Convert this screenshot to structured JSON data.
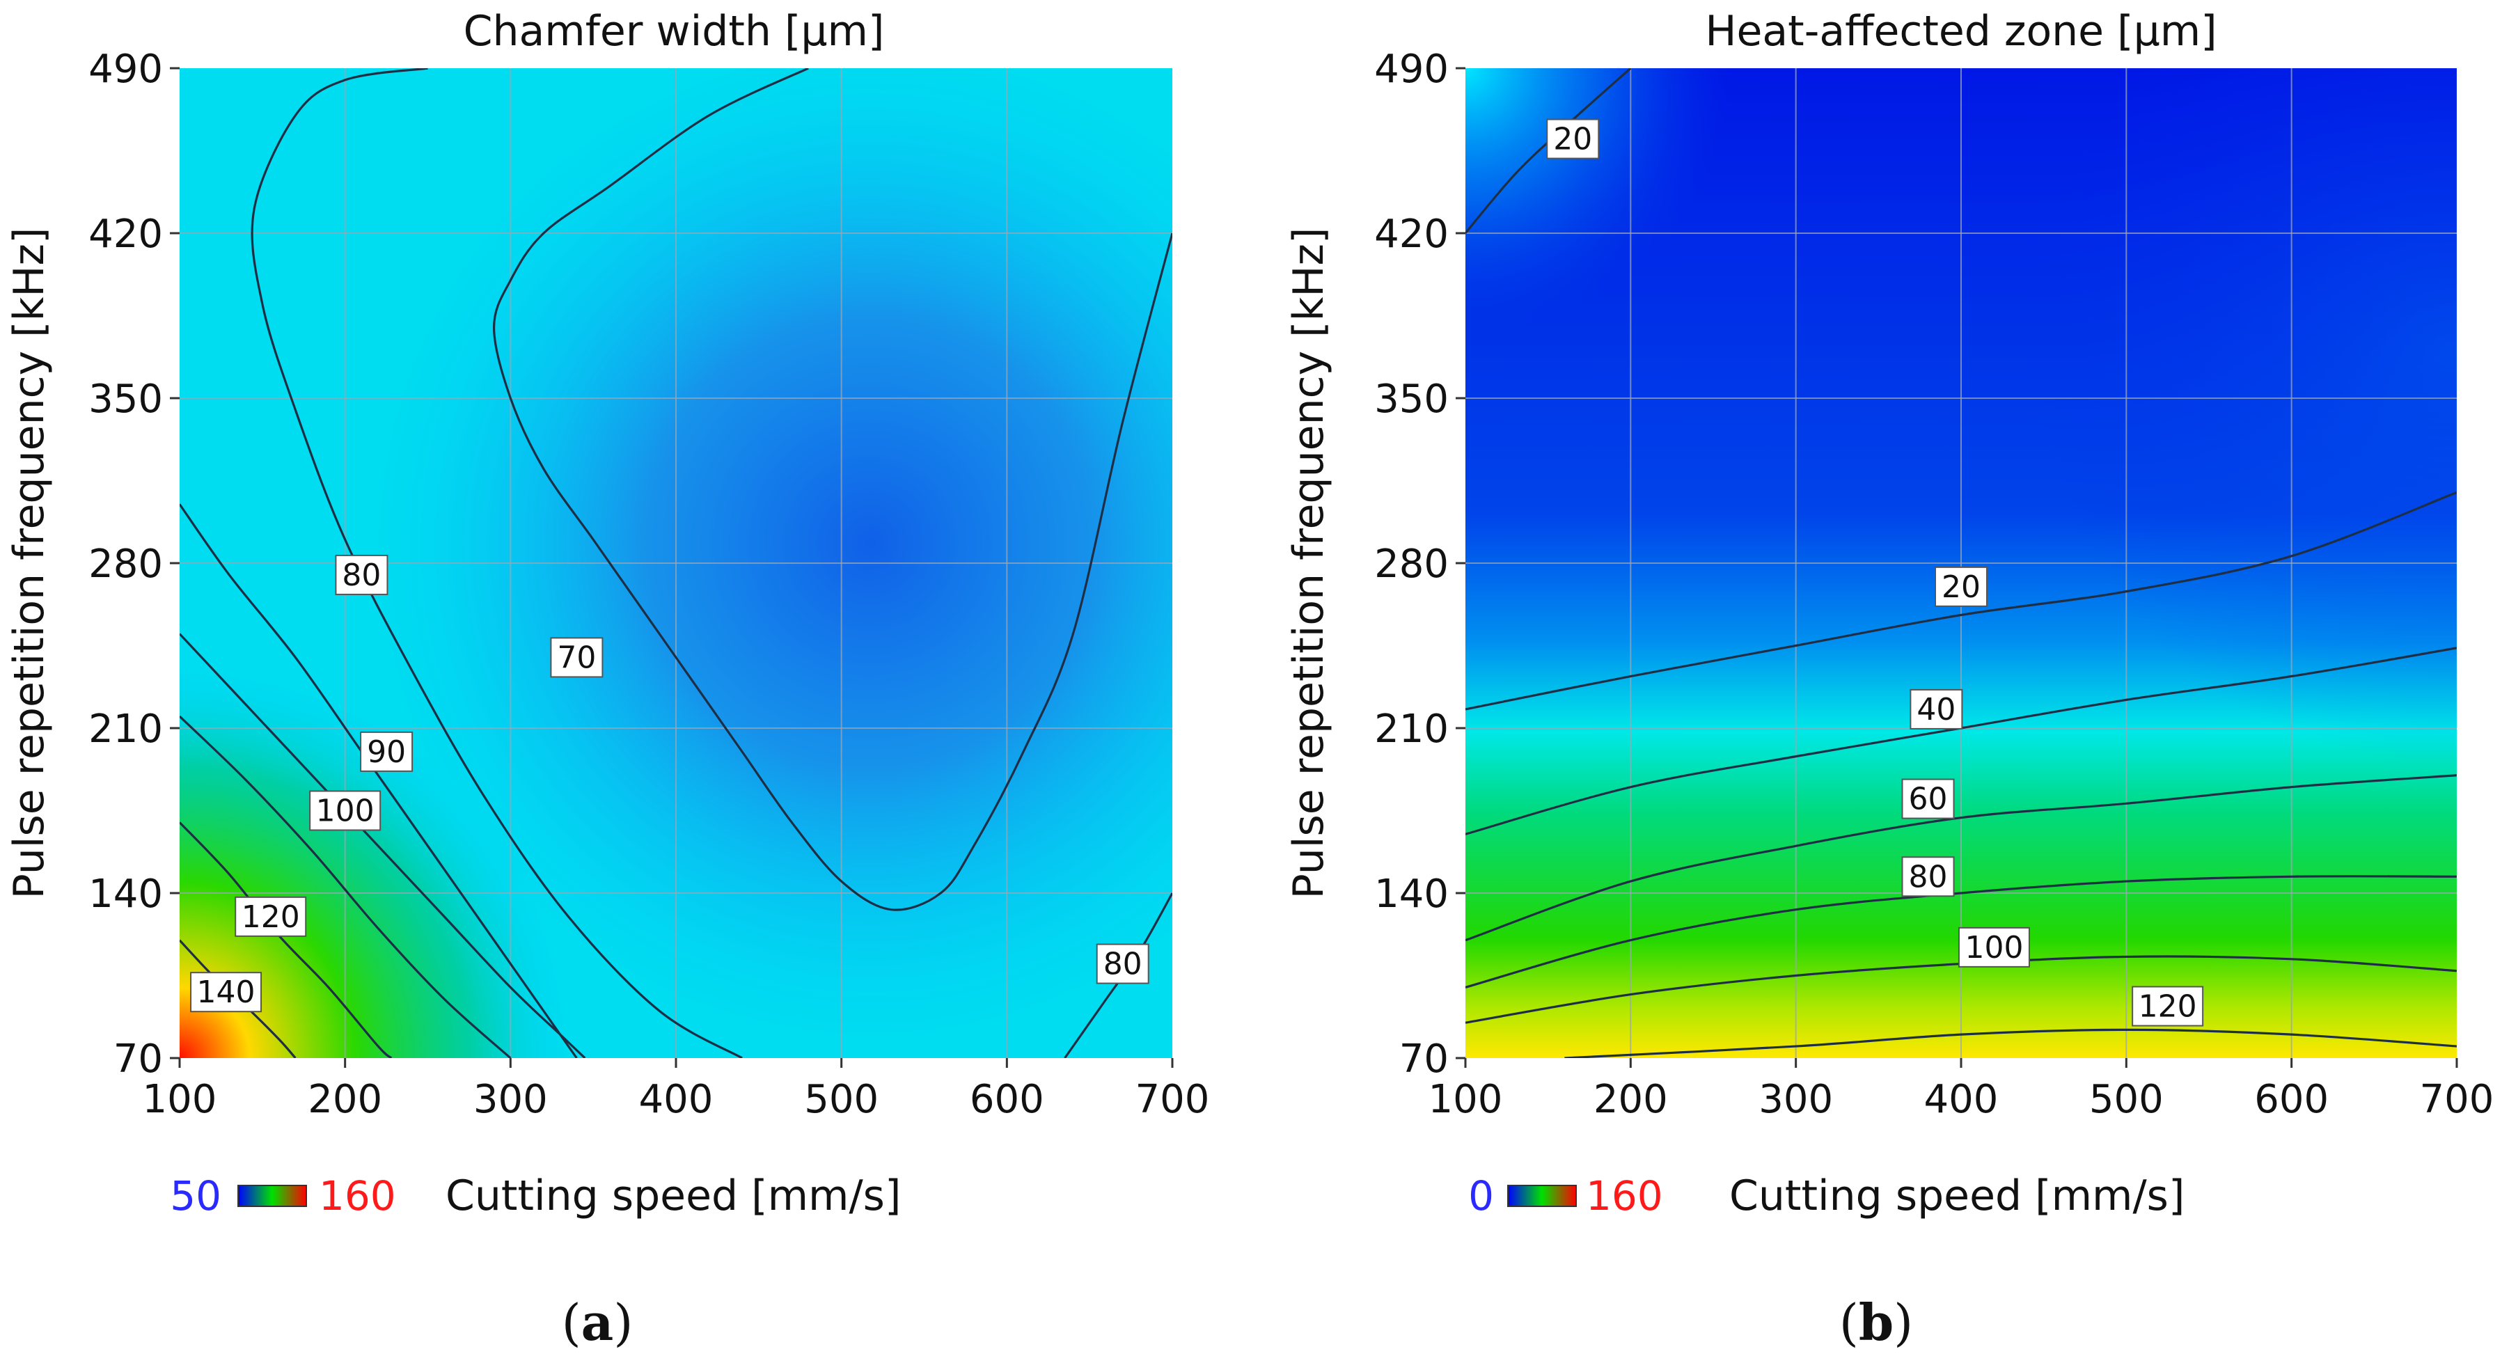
{
  "figure": {
    "panel_a_label": "a",
    "panel_b_label": "b"
  },
  "colors": {
    "low": "#0000ff",
    "mid": "#00e000",
    "high": "#ff0000",
    "low_legend_text": "#2a2aff",
    "high_legend_text": "#ff1a1a"
  },
  "chart_data": [
    {
      "type": "heatmap",
      "title": "Chamfer width [µm]",
      "xlabel": "Cutting speed [mm/s]",
      "ylabel": "Pulse repetition frequency [kHz]",
      "xlim": [
        100,
        700
      ],
      "ylim": [
        70,
        490
      ],
      "xticks": [
        100,
        200,
        300,
        400,
        500,
        600,
        700
      ],
      "xtick_labels": [
        "100",
        "200",
        "300",
        "400",
        "500",
        "600",
        "700"
      ],
      "yticks": [
        70,
        140,
        210,
        280,
        350,
        420,
        490
      ],
      "ytick_labels": [
        "70",
        "140",
        "210",
        "280",
        "350",
        "420",
        "490"
      ],
      "color_range": [
        50,
        160
      ],
      "color_range_labels": [
        "50",
        "160"
      ],
      "grid": true,
      "contours": [
        {
          "level": 70,
          "label": "70",
          "label_at": [
            340,
            240
          ],
          "points": [
            [
              480,
              490
            ],
            [
              420,
              470
            ],
            [
              360,
              440
            ],
            [
              320,
              420
            ],
            [
              300,
              400
            ],
            [
              290,
              380
            ],
            [
              300,
              350
            ],
            [
              320,
              320
            ],
            [
              350,
              290
            ],
            [
              380,
              260
            ],
            [
              410,
              230
            ],
            [
              440,
              200
            ],
            [
              470,
              170
            ],
            [
              500,
              145
            ],
            [
              530,
              133
            ],
            [
              560,
              140
            ],
            [
              580,
              160
            ],
            [
              610,
              200
            ],
            [
              640,
              250
            ],
            [
              670,
              340
            ],
            [
              700,
              420
            ]
          ]
        },
        {
          "level": 80,
          "label": "80",
          "label_at": [
            210,
            275
          ],
          "points": [
            [
              250,
              490
            ],
            [
              200,
              485
            ],
            [
              170,
              470
            ],
            [
              145,
              430
            ],
            [
              150,
              390
            ],
            [
              170,
              345
            ],
            [
              200,
              290
            ],
            [
              240,
              235
            ],
            [
              285,
              180
            ],
            [
              335,
              130
            ],
            [
              390,
              90
            ],
            [
              440,
              70
            ]
          ]
        },
        {
          "level": 80,
          "label": "80",
          "label_at": [
            670,
            110
          ],
          "points": [
            [
              635,
              70
            ],
            [
              660,
              95
            ],
            [
              680,
              115
            ],
            [
              700,
              140
            ]
          ]
        },
        {
          "level": 80,
          "label": "80",
          "label_at": null,
          "points": [
            [
              100,
              305
            ],
            [
              130,
              275
            ],
            [
              170,
              240
            ],
            [
              210,
              200
            ],
            [
              250,
              160
            ],
            [
              290,
              120
            ],
            [
              330,
              80
            ],
            [
              340,
              70
            ]
          ]
        },
        {
          "level": 90,
          "label": "90",
          "label_at": [
            225,
            200
          ],
          "points": [
            [
              100,
              250
            ],
            [
              140,
              220
            ],
            [
              180,
              190
            ],
            [
              220,
              160
            ],
            [
              260,
              130
            ],
            [
              300,
              100
            ],
            [
              330,
              80
            ],
            [
              345,
              70
            ]
          ]
        },
        {
          "level": 100,
          "label": "100",
          "label_at": [
            200,
            175
          ],
          "points": [
            [
              100,
              215
            ],
            [
              140,
              188
            ],
            [
              180,
              158
            ],
            [
              220,
              125
            ],
            [
              260,
              95
            ],
            [
              300,
              70
            ]
          ]
        },
        {
          "level": 120,
          "label": "120",
          "label_at": [
            155,
            130
          ],
          "points": [
            [
              100,
              170
            ],
            [
              130,
              148
            ],
            [
              160,
              122
            ],
            [
              190,
              100
            ],
            [
              220,
              75
            ],
            [
              228,
              70
            ]
          ]
        },
        {
          "level": 140,
          "label": "140",
          "label_at": [
            128,
            98
          ],
          "points": [
            [
              100,
              120
            ],
            [
              120,
              105
            ],
            [
              140,
              92
            ],
            [
              160,
              78
            ],
            [
              170,
              70
            ]
          ]
        }
      ]
    },
    {
      "type": "heatmap",
      "title": "Heat-affected zone [µm]",
      "xlabel": "Cutting speed [mm/s]",
      "ylabel": "Pulse repetition frequency [kHz]",
      "xlim": [
        100,
        700
      ],
      "ylim": [
        70,
        490
      ],
      "xticks": [
        100,
        200,
        300,
        400,
        500,
        600,
        700
      ],
      "xtick_labels": [
        "100",
        "200",
        "300",
        "400",
        "500",
        "600",
        "700"
      ],
      "yticks": [
        70,
        140,
        210,
        280,
        350,
        420,
        490
      ],
      "ytick_labels": [
        "70",
        "140",
        "210",
        "280",
        "350",
        "420",
        "490"
      ],
      "color_range": [
        0,
        160
      ],
      "color_range_labels": [
        "0",
        "160"
      ],
      "grid": true,
      "contours": [
        {
          "level": 20,
          "label": "20",
          "label_at": [
            165,
            460
          ],
          "points": [
            [
              100,
              420
            ],
            [
              130,
              445
            ],
            [
              160,
              465
            ],
            [
              200,
              490
            ]
          ]
        },
        {
          "level": 20,
          "label": "20",
          "label_at": [
            400,
            270
          ],
          "points": [
            [
              100,
              218
            ],
            [
              200,
              232
            ],
            [
              300,
              245
            ],
            [
              400,
              258
            ],
            [
              500,
              268
            ],
            [
              600,
              283
            ],
            [
              700,
              310
            ]
          ]
        },
        {
          "level": 40,
          "label": "40",
          "label_at": [
            385,
            218
          ],
          "points": [
            [
              100,
              165
            ],
            [
              200,
              185
            ],
            [
              300,
              198
            ],
            [
              400,
              210
            ],
            [
              500,
              222
            ],
            [
              600,
              232
            ],
            [
              700,
              244
            ]
          ]
        },
        {
          "level": 60,
          "label": "60",
          "label_at": [
            380,
            180
          ],
          "points": [
            [
              100,
              120
            ],
            [
              200,
              145
            ],
            [
              300,
              160
            ],
            [
              400,
              172
            ],
            [
              500,
              178
            ],
            [
              600,
              185
            ],
            [
              700,
              190
            ]
          ]
        },
        {
          "level": 80,
          "label": "80",
          "label_at": [
            380,
            147
          ],
          "points": [
            [
              100,
              100
            ],
            [
              200,
              120
            ],
            [
              300,
              133
            ],
            [
              400,
              140
            ],
            [
              500,
              145
            ],
            [
              600,
              147
            ],
            [
              700,
              147
            ]
          ]
        },
        {
          "level": 100,
          "label": "100",
          "label_at": [
            420,
            117
          ],
          "points": [
            [
              100,
              85
            ],
            [
              200,
              97
            ],
            [
              300,
              105
            ],
            [
              400,
              110
            ],
            [
              500,
              113
            ],
            [
              600,
              112
            ],
            [
              700,
              107
            ]
          ]
        },
        {
          "level": 120,
          "label": "120",
          "label_at": [
            525,
            92
          ],
          "points": [
            [
              160,
              70
            ],
            [
              300,
              75
            ],
            [
              400,
              80
            ],
            [
              500,
              82
            ],
            [
              600,
              80
            ],
            [
              700,
              75
            ]
          ]
        }
      ]
    }
  ]
}
